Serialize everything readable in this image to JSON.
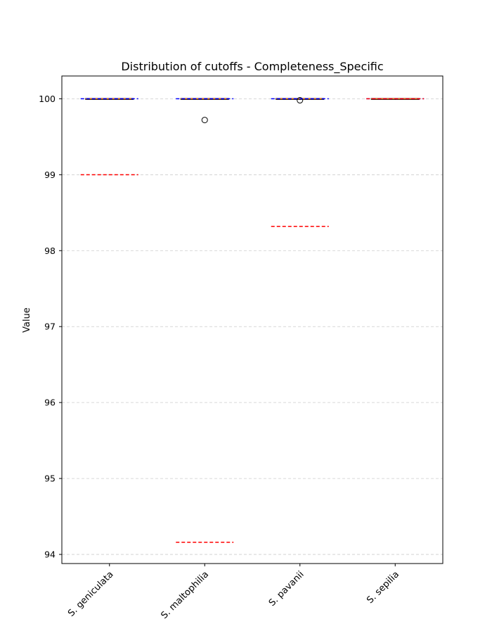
{
  "chart_data": {
    "type": "box",
    "title": "Distribution of cutoffs - Completeness_Specific",
    "xlabel": "",
    "ylabel": "Value",
    "categories": [
      "S. geniculata",
      "S. maltophilia",
      "S. pavanii",
      "S. sepilia"
    ],
    "ylim": [
      93.88,
      100.3
    ],
    "yticks": [
      94,
      95,
      96,
      97,
      98,
      99,
      100
    ],
    "grid": "horizontal dashed",
    "boxes": [
      {
        "category": "S. geniculata",
        "q1": 100.0,
        "median": 100.0,
        "q3": 100.0,
        "whisker_low": 100.0,
        "whisker_high": 100.0,
        "outliers": []
      },
      {
        "category": "S. maltophilia",
        "q1": 100.0,
        "median": 100.0,
        "q3": 100.0,
        "whisker_low": 100.0,
        "whisker_high": 100.0,
        "outliers": [
          99.72
        ]
      },
      {
        "category": "S. pavanii",
        "q1": 100.0,
        "median": 100.0,
        "q3": 100.0,
        "whisker_low": 100.0,
        "whisker_high": 100.0,
        "outliers": [
          99.98
        ]
      },
      {
        "category": "S. sepilia",
        "q1": 100.0,
        "median": 100.0,
        "q3": 100.0,
        "whisker_low": 100.0,
        "whisker_high": 100.0,
        "outliers": []
      }
    ],
    "reference_lines": [
      {
        "color": "#0000ff",
        "style": "dashed",
        "values": [
          100.0,
          100.0,
          100.0,
          100.0
        ]
      },
      {
        "color": "#ff0000",
        "style": "dashed",
        "values": [
          99.0,
          94.16,
          98.32,
          100.0
        ]
      }
    ],
    "colors": {
      "median": "#ff7f0e",
      "grid": "#cccccc",
      "box": "#000000"
    }
  }
}
